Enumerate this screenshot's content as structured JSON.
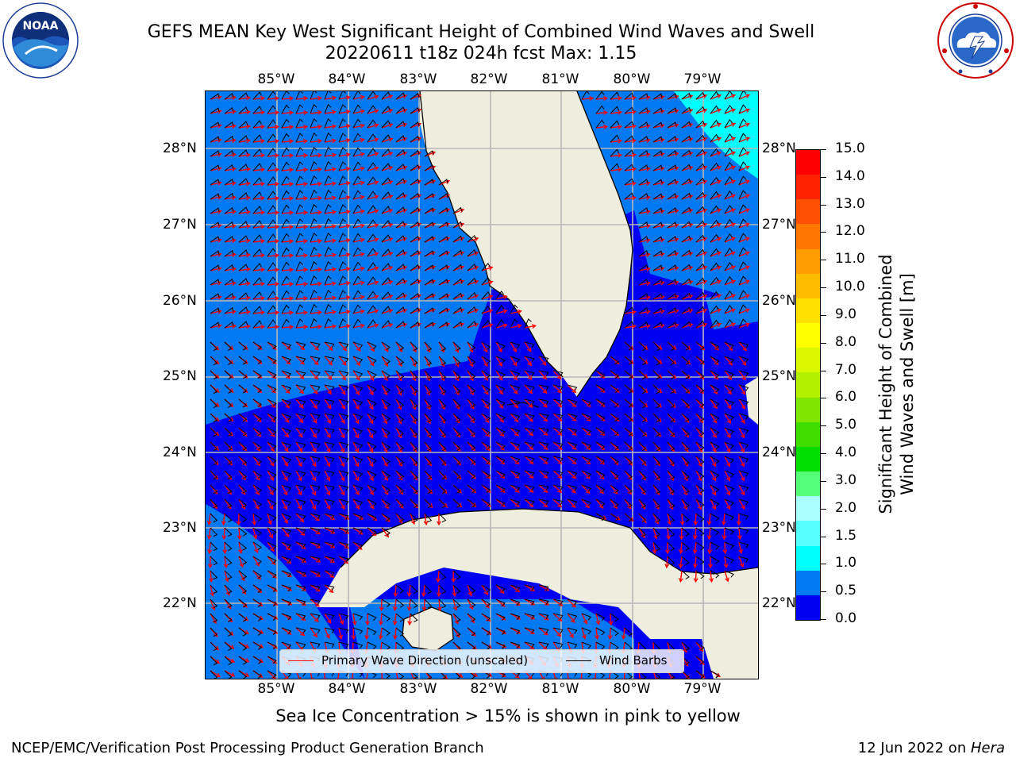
{
  "header": {
    "title_line1": "GEFS MEAN Key West Significant Height of Combined Wind Waves and Swell",
    "title_line2": "20220611 t18z 024h fcst   Max: 1.15"
  },
  "logos": {
    "left": {
      "icon": "noaa-logo",
      "text": "NOAA"
    },
    "right": {
      "icon": "nws-logo"
    }
  },
  "map": {
    "lon_labels": [
      "85°W",
      "84°W",
      "83°W",
      "82°W",
      "81°W",
      "80°W",
      "79°W"
    ],
    "lat_labels": [
      "28°N",
      "27°N",
      "26°N",
      "25°N",
      "24°N",
      "23°N",
      "22°N"
    ],
    "colors": {
      "land": "#efeddd",
      "water_low": "#0000f2",
      "water_mid": "#0079f2",
      "water_high": "#00ffff",
      "grid": "#b8b8b8",
      "wave_arrow": "#ff0000",
      "wind_barb": "#000000"
    }
  },
  "legend": {
    "wave_label": "Primary Wave Direction (unscaled)",
    "wind_label": "Wind Barbs"
  },
  "colorbar": {
    "label_line1": "Significant Height of Combined",
    "label_line2": "Wind Waves and Swell [m]",
    "ticks": [
      "15.0",
      "14.0",
      "13.0",
      "12.0",
      "11.0",
      "10.0",
      "9.0",
      "8.0",
      "7.0",
      "6.0",
      "5.0",
      "4.0",
      "3.0",
      "2.0",
      "1.5",
      "1.0",
      "0.5",
      "0.0"
    ],
    "segments_top_to_bottom": [
      "#ff0000",
      "#ff2200",
      "#ff4f00",
      "#ff7700",
      "#ff9c00",
      "#ffbd00",
      "#ffe000",
      "#ffff00",
      "#d9f700",
      "#b3f000",
      "#80e600",
      "#40dd00",
      "#00dd00",
      "#55ff77",
      "#aaffff",
      "#55ffff",
      "#00ffff",
      "#0079f2",
      "#0000f2"
    ]
  },
  "caption": "Sea Ice Concentration > 15% is shown in pink to yellow",
  "footer": {
    "left": "NCEP/EMC/Verification Post Processing Product Generation Branch",
    "right_date": "12 Jun 2022 on ",
    "right_host": "Hera"
  }
}
